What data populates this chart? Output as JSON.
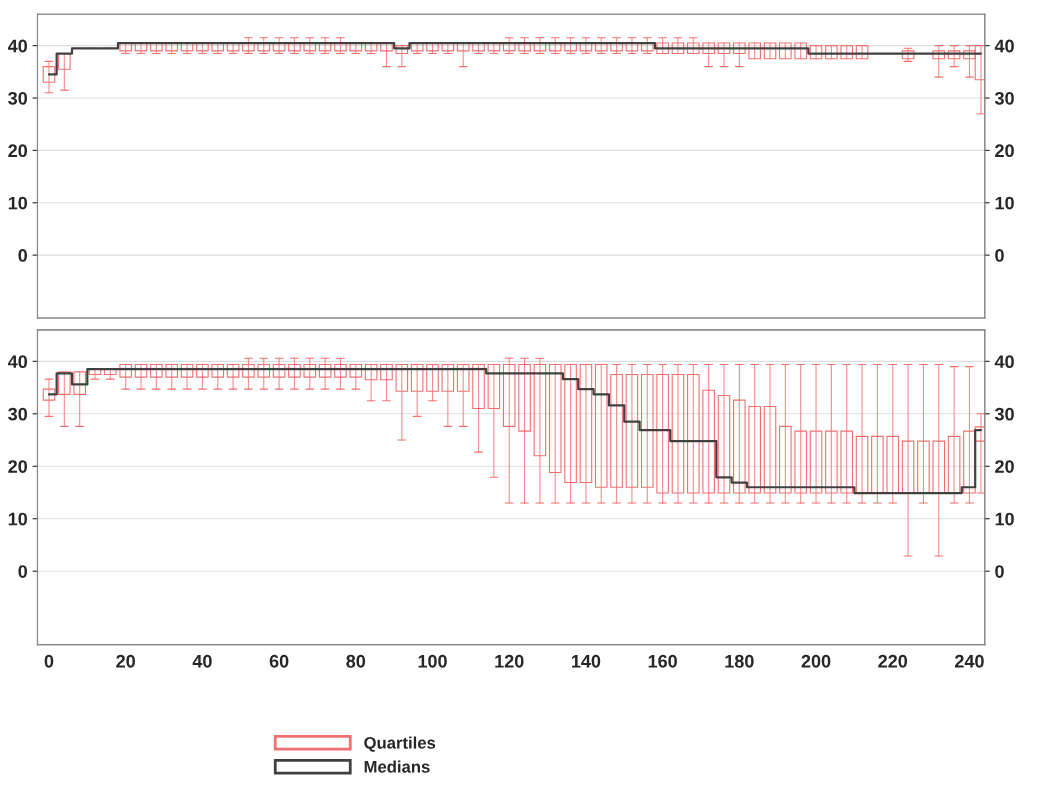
{
  "chart_data": [
    {
      "type": "box",
      "x": [
        0,
        4,
        8,
        12,
        16,
        20,
        24,
        28,
        32,
        36,
        40,
        44,
        48,
        52,
        56,
        60,
        64,
        68,
        72,
        76,
        80,
        84,
        88,
        92,
        96,
        100,
        104,
        108,
        112,
        116,
        120,
        124,
        128,
        132,
        136,
        140,
        144,
        148,
        152,
        156,
        160,
        164,
        168,
        172,
        176,
        180,
        184,
        188,
        192,
        196,
        200,
        204,
        208,
        212,
        216,
        220,
        224,
        228,
        232,
        236,
        240,
        243
      ],
      "xlim": [
        -3,
        244
      ],
      "ylim": [
        -12,
        46
      ],
      "yticks": [
        0,
        10,
        20,
        30,
        40
      ],
      "y2lim": [
        -12,
        46
      ],
      "y2ticks": [
        0,
        10,
        20,
        30,
        40
      ],
      "tick_labels": "y",
      "grid": "y",
      "series": [
        {
          "color": "#f07070",
          "boxes": [
            {
              "low": 31,
              "q1": 33,
              "q3": 36,
              "high": 37
            },
            {
              "low": 31.5,
              "q1": 35.5,
              "q3": 38.5,
              "high": 38.5
            },
            {
              "low": 39.5,
              "q1": 39.5,
              "q3": 39.5,
              "high": 39.5
            },
            {
              "low": 39.5,
              "q1": 39.5,
              "q3": 39.5,
              "high": 39.5
            },
            {
              "low": 39.5,
              "q1": 39.5,
              "q3": 39.5,
              "high": 39.5
            },
            {
              "low": 38.5,
              "q1": 39,
              "q3": 40.5,
              "high": 40.5
            },
            {
              "low": 38.5,
              "q1": 39,
              "q3": 40.5,
              "high": 40.5
            },
            {
              "low": 38.5,
              "q1": 39,
              "q3": 40.5,
              "high": 40.5
            },
            {
              "low": 38.5,
              "q1": 39,
              "q3": 40.5,
              "high": 40.5
            },
            {
              "low": 38.5,
              "q1": 39,
              "q3": 40.5,
              "high": 40.5
            },
            {
              "low": 38.5,
              "q1": 39,
              "q3": 40.5,
              "high": 40.5
            },
            {
              "low": 38.5,
              "q1": 39,
              "q3": 40.5,
              "high": 40.5
            },
            {
              "low": 38.5,
              "q1": 39,
              "q3": 40.5,
              "high": 40.5
            },
            {
              "low": 38.5,
              "q1": 39,
              "q3": 40.5,
              "high": 41.5
            },
            {
              "low": 38.5,
              "q1": 39,
              "q3": 40.5,
              "high": 41.5
            },
            {
              "low": 38.5,
              "q1": 39,
              "q3": 40.5,
              "high": 41.5
            },
            {
              "low": 38.5,
              "q1": 39,
              "q3": 40.5,
              "high": 41.5
            },
            {
              "low": 38.5,
              "q1": 39,
              "q3": 40.5,
              "high": 41.5
            },
            {
              "low": 38.5,
              "q1": 39,
              "q3": 40.5,
              "high": 41.5
            },
            {
              "low": 38.5,
              "q1": 39,
              "q3": 40.5,
              "high": 41.5
            },
            {
              "low": 38.5,
              "q1": 39,
              "q3": 40.5,
              "high": 40.5
            },
            {
              "low": 38.5,
              "q1": 39,
              "q3": 40.5,
              "high": 40.5
            },
            {
              "low": 36,
              "q1": 39,
              "q3": 40.5,
              "high": 40.5
            },
            {
              "low": 36,
              "q1": 38.5,
              "q3": 40,
              "high": 40
            },
            {
              "low": 38.5,
              "q1": 39,
              "q3": 40.5,
              "high": 40.5
            },
            {
              "low": 38.5,
              "q1": 39,
              "q3": 40.5,
              "high": 40.5
            },
            {
              "low": 38.5,
              "q1": 39,
              "q3": 40.5,
              "high": 40.5
            },
            {
              "low": 36,
              "q1": 39,
              "q3": 40.5,
              "high": 40.5
            },
            {
              "low": 38.5,
              "q1": 39,
              "q3": 40.5,
              "high": 40.5
            },
            {
              "low": 38.5,
              "q1": 39,
              "q3": 40.5,
              "high": 40.5
            },
            {
              "low": 38.5,
              "q1": 39,
              "q3": 40.5,
              "high": 41.5
            },
            {
              "low": 38.5,
              "q1": 39,
              "q3": 40.5,
              "high": 41.5
            },
            {
              "low": 38.5,
              "q1": 39,
              "q3": 40.5,
              "high": 41.5
            },
            {
              "low": 38.5,
              "q1": 39,
              "q3": 40.5,
              "high": 41.5
            },
            {
              "low": 38.5,
              "q1": 39,
              "q3": 40.5,
              "high": 41.5
            },
            {
              "low": 38.5,
              "q1": 39,
              "q3": 40.5,
              "high": 41.5
            },
            {
              "low": 38.5,
              "q1": 39,
              "q3": 40.5,
              "high": 41.5
            },
            {
              "low": 38.5,
              "q1": 39,
              "q3": 40.5,
              "high": 41.5
            },
            {
              "low": 38.5,
              "q1": 39,
              "q3": 40.5,
              "high": 41.5
            },
            {
              "low": 38.5,
              "q1": 39,
              "q3": 40.5,
              "high": 41.5
            },
            {
              "low": 38.5,
              "q1": 38.5,
              "q3": 40.5,
              "high": 41.5
            },
            {
              "low": 38.5,
              "q1": 38.5,
              "q3": 40.5,
              "high": 41.5
            },
            {
              "low": 38.5,
              "q1": 38.5,
              "q3": 40.5,
              "high": 41.5
            },
            {
              "low": 36,
              "q1": 38.5,
              "q3": 40.5,
              "high": 40.5
            },
            {
              "low": 36,
              "q1": 38.5,
              "q3": 40.5,
              "high": 40.5
            },
            {
              "low": 36,
              "q1": 38.5,
              "q3": 40.5,
              "high": 40.5
            },
            {
              "low": 37.5,
              "q1": 37.5,
              "q3": 40.5,
              "high": 40.5
            },
            {
              "low": 37.5,
              "q1": 37.5,
              "q3": 40.5,
              "high": 40.5
            },
            {
              "low": 37.5,
              "q1": 37.5,
              "q3": 40.5,
              "high": 40.5
            },
            {
              "low": 37.5,
              "q1": 37.5,
              "q3": 40.5,
              "high": 40.5
            },
            {
              "low": 37.5,
              "q1": 37.5,
              "q3": 40,
              "high": 40
            },
            {
              "low": 37.5,
              "q1": 37.5,
              "q3": 40,
              "high": 40
            },
            {
              "low": 37.5,
              "q1": 37.5,
              "q3": 40,
              "high": 40
            },
            {
              "low": 37.5,
              "q1": 37.5,
              "q3": 40,
              "high": 40
            },
            {
              "low": 38.5,
              "q1": 38.5,
              "q3": 38.5,
              "high": 38.5
            },
            {
              "low": 38.5,
              "q1": 38.5,
              "q3": 38.5,
              "high": 38.5
            },
            {
              "low": 37,
              "q1": 37.5,
              "q3": 39,
              "high": 39.5
            },
            {
              "low": 38.5,
              "q1": 38.5,
              "q3": 38.5,
              "high": 38.5
            },
            {
              "low": 34,
              "q1": 37.5,
              "q3": 39,
              "high": 40
            },
            {
              "low": 36,
              "q1": 37.5,
              "q3": 39,
              "high": 40
            },
            {
              "low": 34,
              "q1": 37.5,
              "q3": 39,
              "high": 40
            },
            {
              "low": 27,
              "q1": 33.5,
              "q3": 40,
              "high": 40
            }
          ]
        },
        {
          "type": "step",
          "color": "#404040",
          "values": [
            34.5,
            38.5,
            39.5,
            39.5,
            39.5,
            40.5,
            40.5,
            40.5,
            40.5,
            40.5,
            40.5,
            40.5,
            40.5,
            40.5,
            40.5,
            40.5,
            40.5,
            40.5,
            40.5,
            40.5,
            40.5,
            40.5,
            40.5,
            39.5,
            40.5,
            40.5,
            40.5,
            40.5,
            40.5,
            40.5,
            40.5,
            40.5,
            40.5,
            40.5,
            40.5,
            40.5,
            40.5,
            40.5,
            40.5,
            40.5,
            39.5,
            39.5,
            39.5,
            39.5,
            39.5,
            39.5,
            39.5,
            39.5,
            39.5,
            39.5,
            38.5,
            38.5,
            38.5,
            38.5,
            38.5,
            38.5,
            38.5,
            38.5,
            38.5,
            38.5,
            38.5,
            38.5
          ]
        }
      ]
    },
    {
      "type": "box",
      "x": [
        0,
        4,
        8,
        12,
        16,
        20,
        24,
        28,
        32,
        36,
        40,
        44,
        48,
        52,
        56,
        60,
        64,
        68,
        72,
        76,
        80,
        84,
        88,
        92,
        96,
        100,
        104,
        108,
        112,
        116,
        120,
        124,
        128,
        132,
        136,
        140,
        144,
        148,
        152,
        156,
        160,
        164,
        168,
        172,
        176,
        180,
        184,
        188,
        192,
        196,
        200,
        204,
        208,
        212,
        216,
        220,
        224,
        228,
        232,
        236,
        240,
        243
      ],
      "xlim": [
        -3,
        244
      ],
      "xticks": [
        0,
        20,
        40,
        60,
        80,
        100,
        120,
        140,
        160,
        180,
        200,
        220,
        240
      ],
      "ylim": [
        -14,
        46
      ],
      "yticks": [
        0,
        10,
        20,
        30,
        40
      ],
      "y2lim": [
        -14,
        46
      ],
      "y2ticks": [
        0,
        10,
        20,
        30,
        40
      ],
      "grid": "y",
      "legend": "bottom",
      "series": [
        {
          "name": "Quartiles",
          "color": "#f07070",
          "boxes": [
            {
              "low": 29.5,
              "q1": 32.6,
              "q3": 34.7,
              "high": 36.6
            },
            {
              "low": 27.6,
              "q1": 33.7,
              "q3": 38,
              "high": 38
            },
            {
              "low": 27.6,
              "q1": 33.7,
              "q3": 38,
              "high": 38
            },
            {
              "low": 36.6,
              "q1": 37.5,
              "q3": 38.5,
              "high": 38.5
            },
            {
              "low": 36.6,
              "q1": 37.5,
              "q3": 38.5,
              "high": 38.5
            },
            {
              "low": 34.7,
              "q1": 37,
              "q3": 39.4,
              "high": 39.4
            },
            {
              "low": 34.7,
              "q1": 37,
              "q3": 39.4,
              "high": 39.4
            },
            {
              "low": 34.7,
              "q1": 37,
              "q3": 39.4,
              "high": 39.4
            },
            {
              "low": 34.7,
              "q1": 37,
              "q3": 39.4,
              "high": 39.4
            },
            {
              "low": 34.7,
              "q1": 37,
              "q3": 39.4,
              "high": 39.4
            },
            {
              "low": 34.7,
              "q1": 37,
              "q3": 39.4,
              "high": 39.4
            },
            {
              "low": 34.7,
              "q1": 37,
              "q3": 39.4,
              "high": 39.4
            },
            {
              "low": 34.7,
              "q1": 37,
              "q3": 39.4,
              "high": 39.4
            },
            {
              "low": 34.7,
              "q1": 37,
              "q3": 39.4,
              "high": 40.6
            },
            {
              "low": 34.7,
              "q1": 37,
              "q3": 39.4,
              "high": 40.6
            },
            {
              "low": 34.7,
              "q1": 37,
              "q3": 39.4,
              "high": 40.6
            },
            {
              "low": 34.7,
              "q1": 37,
              "q3": 39.4,
              "high": 40.6
            },
            {
              "low": 34.7,
              "q1": 37,
              "q3": 39.4,
              "high": 40.6
            },
            {
              "low": 34.7,
              "q1": 37,
              "q3": 39.4,
              "high": 40.6
            },
            {
              "low": 34.7,
              "q1": 37,
              "q3": 39.4,
              "high": 40.6
            },
            {
              "low": 34.7,
              "q1": 37,
              "q3": 39.4,
              "high": 39.4
            },
            {
              "low": 32.5,
              "q1": 36.5,
              "q3": 39.4,
              "high": 39.4
            },
            {
              "low": 32.5,
              "q1": 36.5,
              "q3": 39.4,
              "high": 39.4
            },
            {
              "low": 25,
              "q1": 34.3,
              "q3": 39.4,
              "high": 39.4
            },
            {
              "low": 29.5,
              "q1": 34.3,
              "q3": 39.4,
              "high": 39.4
            },
            {
              "low": 32.5,
              "q1": 34.3,
              "q3": 39.4,
              "high": 39.4
            },
            {
              "low": 27.6,
              "q1": 34.3,
              "q3": 39.4,
              "high": 39.4
            },
            {
              "low": 27.6,
              "q1": 34.3,
              "q3": 39.4,
              "high": 39.4
            },
            {
              "low": 22.7,
              "q1": 31,
              "q3": 39.4,
              "high": 39.4
            },
            {
              "low": 17.9,
              "q1": 31,
              "q3": 39.4,
              "high": 39.4
            },
            {
              "low": 13,
              "q1": 27.6,
              "q3": 39.4,
              "high": 40.6
            },
            {
              "low": 13,
              "q1": 26.7,
              "q3": 39.4,
              "high": 40.6
            },
            {
              "low": 13,
              "q1": 22,
              "q3": 39.4,
              "high": 40.6
            },
            {
              "low": 13,
              "q1": 18.8,
              "q3": 39.4,
              "high": 39.4
            },
            {
              "low": 13,
              "q1": 16.9,
              "q3": 39.4,
              "high": 39.4
            },
            {
              "low": 13,
              "q1": 16.9,
              "q3": 39.4,
              "high": 39.4
            },
            {
              "low": 13,
              "q1": 16,
              "q3": 39.4,
              "high": 39.4
            },
            {
              "low": 13,
              "q1": 16,
              "q3": 37.5,
              "high": 39.4
            },
            {
              "low": 13,
              "q1": 16,
              "q3": 37.5,
              "high": 39.4
            },
            {
              "low": 13,
              "q1": 16,
              "q3": 37.5,
              "high": 39.4
            },
            {
              "low": 13,
              "q1": 14.9,
              "q3": 37.5,
              "high": 39.4
            },
            {
              "low": 13,
              "q1": 14.9,
              "q3": 37.5,
              "high": 39.4
            },
            {
              "low": 13,
              "q1": 14.9,
              "q3": 37.5,
              "high": 39.4
            },
            {
              "low": 13,
              "q1": 14.9,
              "q3": 34.5,
              "high": 39.4
            },
            {
              "low": 13,
              "q1": 14.9,
              "q3": 33.5,
              "high": 39.4
            },
            {
              "low": 13,
              "q1": 14.9,
              "q3": 32.6,
              "high": 39.4
            },
            {
              "low": 13,
              "q1": 14.9,
              "q3": 31.4,
              "high": 39.4
            },
            {
              "low": 13,
              "q1": 14.9,
              "q3": 31.4,
              "high": 39.4
            },
            {
              "low": 13,
              "q1": 14.9,
              "q3": 27.6,
              "high": 39.4
            },
            {
              "low": 13,
              "q1": 14.9,
              "q3": 26.7,
              "high": 39.4
            },
            {
              "low": 13,
              "q1": 14.9,
              "q3": 26.7,
              "high": 39.4
            },
            {
              "low": 13,
              "q1": 14.9,
              "q3": 26.7,
              "high": 39.4
            },
            {
              "low": 13,
              "q1": 14.9,
              "q3": 26.7,
              "high": 39.4
            },
            {
              "low": 13,
              "q1": 14.9,
              "q3": 25.7,
              "high": 39.4
            },
            {
              "low": 13,
              "q1": 14.9,
              "q3": 25.7,
              "high": 39.4
            },
            {
              "low": 13,
              "q1": 14.9,
              "q3": 25.7,
              "high": 39.4
            },
            {
              "low": 2.9,
              "q1": 14.9,
              "q3": 24.8,
              "high": 39.4
            },
            {
              "low": 13,
              "q1": 14.9,
              "q3": 24.8,
              "high": 39.4
            },
            {
              "low": 2.9,
              "q1": 14.9,
              "q3": 24.8,
              "high": 39.4
            },
            {
              "low": 13,
              "q1": 14.9,
              "q3": 25.7,
              "high": 39
            },
            {
              "low": 13,
              "q1": 14.9,
              "q3": 26.7,
              "high": 39
            },
            {
              "low": 14.9,
              "q1": 24.8,
              "q3": 27.5,
              "high": 30
            }
          ]
        },
        {
          "name": "Medians",
          "type": "step",
          "color": "#404040",
          "values": [
            33.7,
            37.7,
            35.6,
            38.5,
            38.5,
            38.5,
            38.5,
            38.5,
            38.5,
            38.5,
            38.5,
            38.5,
            38.5,
            38.5,
            38.5,
            38.5,
            38.5,
            38.5,
            38.5,
            38.5,
            38.5,
            38.5,
            38.5,
            38.5,
            38.5,
            38.5,
            38.5,
            38.5,
            38.5,
            37.7,
            37.7,
            37.7,
            37.7,
            37.7,
            36.6,
            34.7,
            33.7,
            31.6,
            28.5,
            26.9,
            26.9,
            24.8,
            24.8,
            24.8,
            17.9,
            16.9,
            16,
            16,
            16,
            16,
            16,
            16,
            16,
            14.9,
            14.9,
            14.9,
            14.9,
            14.9,
            14.9,
            14.9,
            16,
            26.9
          ]
        }
      ]
    }
  ]
}
